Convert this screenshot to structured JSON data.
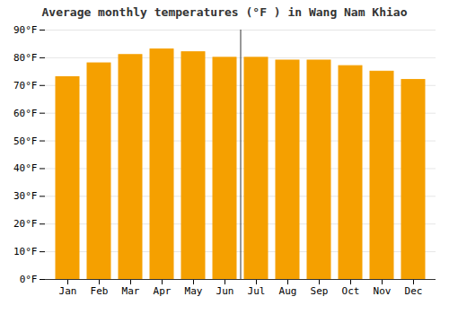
{
  "chart_data": {
    "type": "bar",
    "title": "Average monthly temperatures (°F ) in Wang Nam Khiao",
    "categories": [
      "Jan",
      "Feb",
      "Mar",
      "Apr",
      "May",
      "Jun",
      "Jul",
      "Aug",
      "Sep",
      "Oct",
      "Nov",
      "Dec"
    ],
    "values": [
      73,
      78,
      81,
      83,
      82,
      80,
      80,
      79,
      79,
      77,
      75,
      72
    ],
    "color": "#F5A000",
    "ylim": [
      0,
      90
    ],
    "yticks": [
      {
        "value": 0,
        "label": "0°F"
      },
      {
        "value": 10,
        "label": "10°F"
      },
      {
        "value": 20,
        "label": "20°F"
      },
      {
        "value": 30,
        "label": "30°F"
      },
      {
        "value": 40,
        "label": "40°F"
      },
      {
        "value": 50,
        "label": "50°F"
      },
      {
        "value": 60,
        "label": "60°F"
      },
      {
        "value": 70,
        "label": "70°F"
      },
      {
        "value": 80,
        "label": "80°F"
      },
      {
        "value": 90,
        "label": "90°F"
      }
    ],
    "grid": true
  }
}
